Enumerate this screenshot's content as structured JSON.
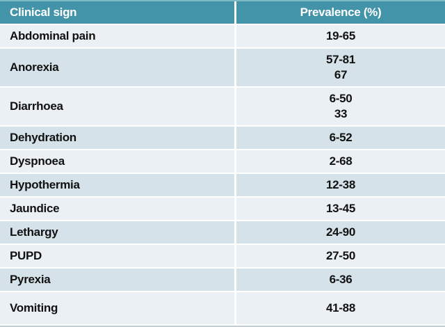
{
  "colors": {
    "header_bg": "#4494a9",
    "header_top_edge": "#7fb9c6",
    "header_text": "#ffffff",
    "row_light_bg": "#eaf0f4",
    "row_dark_bg": "#d6e2ea",
    "row_text": "#111111",
    "separator": "#ffffff"
  },
  "chart_data": {
    "type": "table",
    "title": "",
    "columns": [
      "Clinical sign",
      "Prevalence (%)"
    ],
    "rows": [
      {
        "sign": "Abdominal pain",
        "prevalence": [
          "19-65"
        ]
      },
      {
        "sign": "Anorexia",
        "prevalence": [
          "57-81",
          "67"
        ]
      },
      {
        "sign": "Diarrhoea",
        "prevalence": [
          "6-50",
          "33"
        ]
      },
      {
        "sign": "Dehydration",
        "prevalence": [
          "6-52"
        ]
      },
      {
        "sign": "Dyspnoea",
        "prevalence": [
          "2-68"
        ]
      },
      {
        "sign": "Hypothermia",
        "prevalence": [
          "12-38"
        ]
      },
      {
        "sign": "Jaundice",
        "prevalence": [
          "13-45"
        ]
      },
      {
        "sign": "Lethargy",
        "prevalence": [
          "24-90"
        ]
      },
      {
        "sign": "PUPD",
        "prevalence": [
          "27-50"
        ]
      },
      {
        "sign": "Pyrexia",
        "prevalence": [
          "6-36"
        ]
      },
      {
        "sign": "Vomiting",
        "prevalence": [
          "41-88"
        ]
      }
    ]
  }
}
